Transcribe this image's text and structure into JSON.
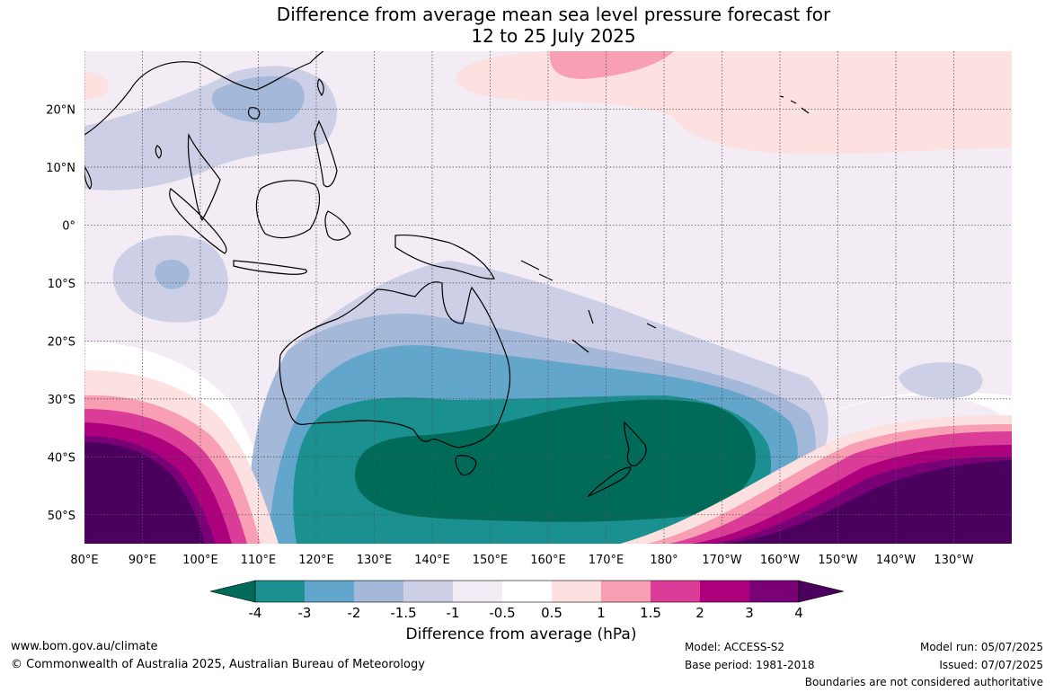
{
  "title": {
    "line1": "Difference from average mean sea level pressure forecast for",
    "line2": "12 to 25 July 2025"
  },
  "map": {
    "lat_labels": [
      "20°N",
      "10°N",
      "0°",
      "10°S",
      "20°S",
      "30°S",
      "40°S",
      "50°S"
    ],
    "lon_labels": [
      "80°E",
      "90°E",
      "100°E",
      "110°E",
      "120°E",
      "130°E",
      "140°E",
      "150°E",
      "160°E",
      "170°E",
      "180°",
      "170°W",
      "160°W",
      "150°W",
      "140°W",
      "130°W"
    ],
    "extent": {
      "lon_min": 80,
      "lon_max": 240,
      "lat_min": -55,
      "lat_max": 30
    },
    "gridlines": true
  },
  "colorbar": {
    "ticks": [
      "-4",
      "-3",
      "-2",
      "-1.5",
      "-1",
      "-0.5",
      "0.5",
      "1",
      "1.5",
      "2",
      "3",
      "4"
    ],
    "colors": [
      "#006b58",
      "#1a9090",
      "#62a6cc",
      "#a4b8d9",
      "#cccfe5",
      "#f3ecf5",
      "#ffffff",
      "#fde0e0",
      "#f99fb3",
      "#db3c98",
      "#ad007c",
      "#7a0078",
      "#4a005c"
    ],
    "label": "Difference from average (hPa)"
  },
  "footer": {
    "website": "www.bom.gov.au/climate",
    "copyright": "© Commonwealth of Australia 2025, Australian Bureau of Meteorology",
    "model": "Model: ACCESS-S2",
    "base_period": "Base period: 1981-2018",
    "model_run": "Model run: 05/07/2025",
    "issued": "Issued: 07/07/2025",
    "disclaimer": "Boundaries are not considered authoritative"
  }
}
